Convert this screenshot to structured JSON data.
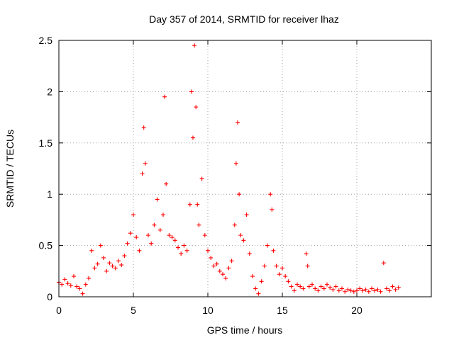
{
  "chart_data": {
    "type": "scatter",
    "title": "Day 357 of 2014, SRMTID for receiver lhaz",
    "xlabel": "GPS time / hours",
    "ylabel": "SRMTID / TECUs",
    "xlim": [
      0,
      25
    ],
    "ylim": [
      0,
      2.5
    ],
    "x_ticks": [
      0,
      5,
      10,
      15,
      20
    ],
    "x_tick_labels": [
      "0",
      "5",
      "10",
      "15",
      "20"
    ],
    "y_ticks": [
      0,
      0.5,
      1,
      1.5,
      2,
      2.5
    ],
    "y_tick_labels": [
      "0",
      "0.5",
      "1",
      "1.5",
      "2",
      "2.5"
    ],
    "grid": true,
    "marker": "plus",
    "color": "#ff0000",
    "series": [
      {
        "name": "SRMTID",
        "x": [
          0.0,
          0.2,
          0.4,
          0.6,
          0.8,
          1.0,
          1.2,
          1.4,
          1.6,
          1.8,
          2.0,
          2.2,
          2.4,
          2.6,
          2.8,
          3.0,
          3.2,
          3.4,
          3.6,
          3.8,
          4.0,
          4.2,
          4.4,
          4.6,
          4.8,
          5.0,
          5.2,
          5.4,
          5.6,
          5.7,
          5.8,
          6.0,
          6.2,
          6.4,
          6.6,
          6.8,
          7.0,
          7.1,
          7.2,
          7.4,
          7.6,
          7.8,
          8.0,
          8.2,
          8.4,
          8.6,
          8.8,
          8.9,
          9.0,
          9.1,
          9.2,
          9.3,
          9.4,
          9.6,
          9.8,
          10.0,
          10.2,
          10.4,
          10.6,
          10.8,
          11.0,
          11.2,
          11.4,
          11.6,
          11.8,
          11.9,
          12.0,
          12.1,
          12.2,
          12.4,
          12.6,
          12.8,
          13.0,
          13.2,
          13.4,
          13.6,
          13.8,
          14.0,
          14.2,
          14.3,
          14.4,
          14.6,
          14.8,
          15.0,
          15.2,
          15.4,
          15.6,
          15.8,
          16.0,
          16.2,
          16.4,
          16.6,
          16.7,
          16.8,
          17.0,
          17.2,
          17.4,
          17.6,
          17.8,
          18.0,
          18.2,
          18.4,
          18.6,
          18.8,
          19.0,
          19.2,
          19.4,
          19.6,
          19.8,
          20.0,
          20.2,
          20.4,
          20.6,
          20.8,
          21.0,
          21.2,
          21.4,
          21.6,
          21.8,
          22.0,
          22.2,
          22.4,
          22.6,
          22.8
        ],
        "y": [
          0.14,
          0.12,
          0.17,
          0.13,
          0.11,
          0.2,
          0.1,
          0.08,
          0.03,
          0.12,
          0.18,
          0.45,
          0.28,
          0.32,
          0.5,
          0.38,
          0.25,
          0.33,
          0.3,
          0.28,
          0.35,
          0.31,
          0.4,
          0.52,
          0.62,
          0.8,
          0.58,
          0.45,
          1.2,
          1.65,
          1.3,
          0.6,
          0.52,
          0.7,
          0.95,
          0.65,
          0.8,
          1.95,
          1.1,
          0.6,
          0.58,
          0.55,
          0.48,
          0.42,
          0.5,
          0.45,
          0.9,
          2.0,
          1.55,
          2.45,
          1.85,
          0.9,
          0.7,
          1.15,
          0.6,
          0.45,
          0.38,
          0.3,
          0.32,
          0.25,
          0.22,
          0.18,
          0.28,
          0.35,
          0.7,
          1.3,
          1.7,
          1.0,
          0.6,
          0.55,
          0.8,
          0.42,
          0.2,
          0.08,
          0.03,
          0.15,
          0.3,
          0.5,
          1.0,
          0.85,
          0.45,
          0.3,
          0.22,
          0.28,
          0.2,
          0.15,
          0.1,
          0.06,
          0.12,
          0.1,
          0.08,
          0.42,
          0.3,
          0.1,
          0.12,
          0.08,
          0.06,
          0.1,
          0.08,
          0.12,
          0.09,
          0.07,
          0.1,
          0.06,
          0.08,
          0.05,
          0.07,
          0.06,
          0.05,
          0.06,
          0.08,
          0.06,
          0.07,
          0.05,
          0.08,
          0.06,
          0.07,
          0.05,
          0.33,
          0.08,
          0.06,
          0.1,
          0.07,
          0.09
        ]
      }
    ]
  }
}
